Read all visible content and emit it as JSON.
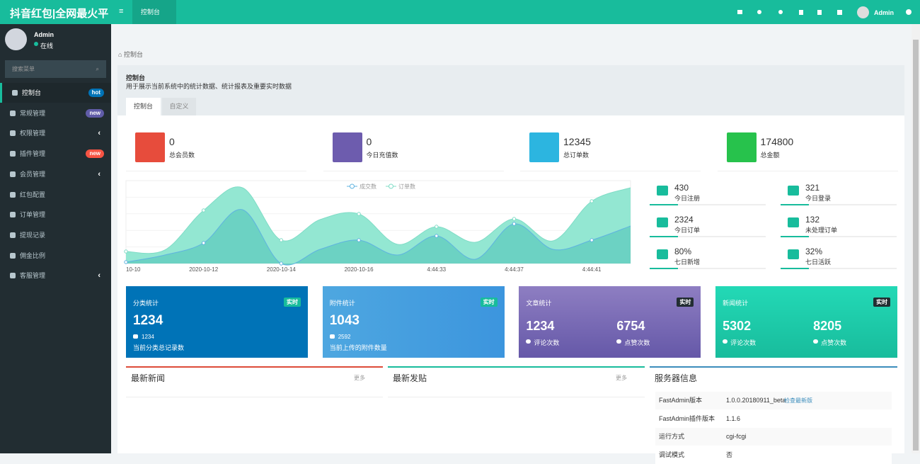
{
  "header": {
    "logo": "抖音红包|全网最火平",
    "tab": "控制台",
    "user": "Admin"
  },
  "sidebar": {
    "user": "Admin",
    "status": "在线",
    "search": "搜索菜单",
    "menu": [
      {
        "label": "控制台",
        "badge": "hot"
      },
      {
        "label": "常规管理",
        "badge": "new"
      },
      {
        "label": "权限管理",
        "arrow": "‹"
      },
      {
        "label": "插件管理",
        "badge": "new"
      },
      {
        "label": "会员管理",
        "arrow": "‹"
      },
      {
        "label": "红包配置"
      },
      {
        "label": "订单管理"
      },
      {
        "label": "提现记录"
      },
      {
        "label": "佣金比例"
      },
      {
        "label": "客服管理",
        "arrow": "‹"
      }
    ]
  },
  "breadcrumb": "控制台",
  "panel": {
    "title": "控制台",
    "description": "用于展示当前系统中的统计数据、统计报表及重要实时数据",
    "tabs": [
      "控制台",
      "自定义"
    ]
  },
  "stats": [
    {
      "value": 0,
      "label": "总会员数",
      "color": "#e74c3c"
    },
    {
      "value": 0,
      "label": "今日充值数",
      "color": "#6d5cae"
    },
    {
      "value": 12345,
      "label": "总订单数",
      "color": "#2cb5e0"
    },
    {
      "value": 174800,
      "label": "总金额",
      "color": "#27c24c"
    }
  ],
  "chart_data": {
    "type": "line",
    "area": true,
    "smooth": true,
    "categories": [
      "10-10",
      null,
      "2020-10-12",
      null,
      "2020-10-14",
      null,
      "2020-10-16",
      null,
      "4:44:33",
      null,
      "4:44:37",
      null,
      "4:44:41",
      null
    ],
    "ylim": [
      0,
      117
    ],
    "series": [
      {
        "name": "订单数",
        "color": "#7fdcc6",
        "fill": "#93e7d2",
        "values": [
          17,
          19,
          75,
          107,
          33,
          62,
          70,
          27,
          52,
          30,
          63,
          32,
          88,
          107
        ]
      },
      {
        "name": "成交数",
        "color": "#5fb3e0",
        "fill": "#6cd2c3",
        "values": [
          2,
          12,
          29,
          76,
          0,
          20,
          33,
          12,
          39,
          6,
          56,
          20,
          33,
          53
        ]
      }
    ]
  },
  "mini_stats": [
    {
      "value": "430",
      "label": "今日注册"
    },
    {
      "value": "321",
      "label": "今日登录"
    },
    {
      "value": "2324",
      "label": "今日订单"
    },
    {
      "value": "132",
      "label": "未处理订单"
    },
    {
      "value": "80%",
      "label": "七日新增"
    },
    {
      "value": "32%",
      "label": "七日活跃"
    }
  ],
  "cards": [
    {
      "title": "分类统计",
      "badge": "实时",
      "value": "1234",
      "sub": "1234",
      "desc": "当前分类总记录数"
    },
    {
      "title": "附件统计",
      "badge": "实时",
      "value": "1043",
      "sub": "2592",
      "desc": "当前上传的附件数量"
    },
    {
      "title": "文章统计",
      "badge": "实时",
      "left": {
        "value": "1234",
        "label": "评论次数"
      },
      "right": {
        "value": "6754",
        "label": "点赞次数"
      }
    },
    {
      "title": "新闻统计",
      "badge": "实时",
      "left": {
        "value": "5302",
        "label": "评论次数"
      },
      "right": {
        "value": "8205",
        "label": "点赞次数"
      }
    }
  ],
  "boxes": [
    {
      "title": "最新新闻",
      "more": "更多"
    },
    {
      "title": "最新发贴",
      "more": "更多"
    }
  ],
  "server": {
    "title": "服务器信息",
    "rows": [
      [
        "FastAdmin版本",
        "1.0.0.20180911_beta",
        "检查最新版"
      ],
      [
        "FastAdmin插件版本",
        "1.1.6"
      ],
      [
        "运行方式",
        "cgi-fcgi"
      ],
      [
        "调试模式",
        "否"
      ]
    ]
  }
}
